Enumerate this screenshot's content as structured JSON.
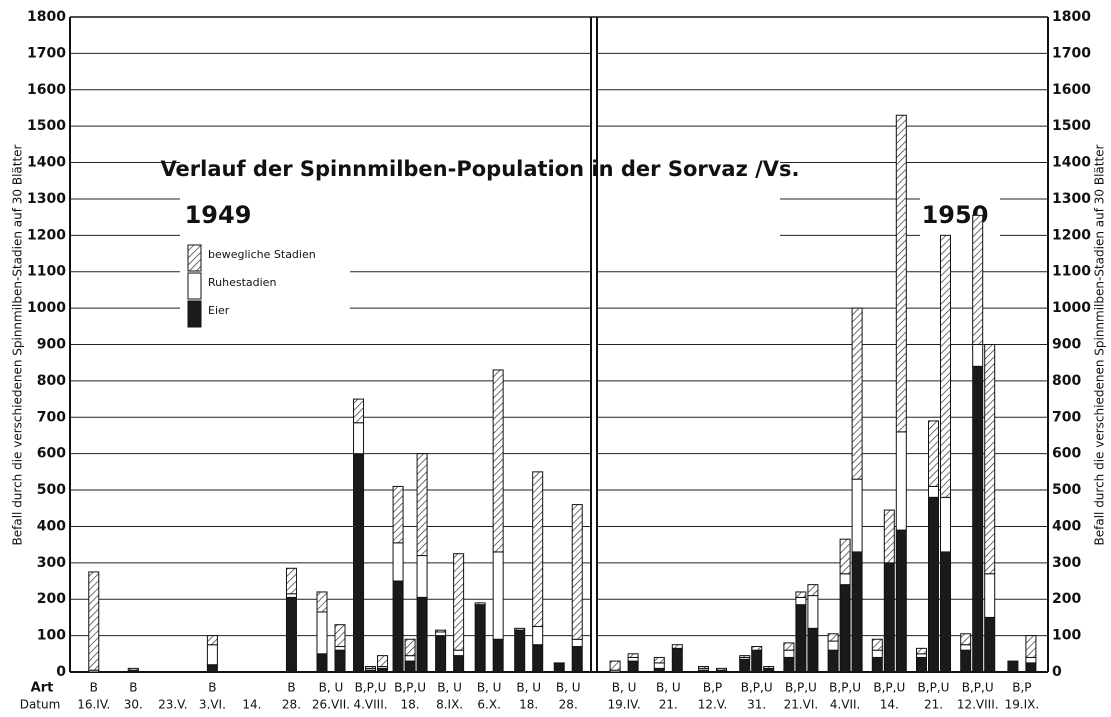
{
  "chart_data": {
    "type": "bar",
    "stacked": true,
    "title": "Verlauf der Spinnmilben-Population in der Sorvaz /Vs.",
    "y_label": "Befall durch die verschiedenen Spinnmilben-Stadien auf 30 Blätter",
    "row_labels": {
      "art": "Art",
      "date": "Datum"
    },
    "ylim": [
      0,
      1800
    ],
    "yticks": [
      0,
      100,
      200,
      300,
      400,
      500,
      600,
      700,
      800,
      900,
      1000,
      1100,
      1200,
      1300,
      1400,
      1500,
      1600,
      1700,
      1800
    ],
    "grid": true,
    "series": [
      {
        "name": "Eier",
        "color": "#1a1a1a",
        "hatch": false
      },
      {
        "name": "Ruhestadien",
        "color": "#ffffff",
        "hatch": false
      },
      {
        "name": "bewegliche Stadien",
        "color": "#333333",
        "hatch": true
      }
    ],
    "panels": [
      {
        "label": "1949",
        "art": [
          "B",
          "B",
          null,
          "B",
          null,
          "B",
          "B, U",
          null,
          "B,P,U",
          null,
          null,
          "B,P,U",
          null,
          null,
          "B, U",
          null,
          "B, U",
          null,
          "B, U",
          null,
          "B, U",
          null
        ],
        "dates": [
          "16.IV.",
          "30.",
          "23.V.",
          "3.VI.",
          "14.",
          "28.",
          "26.VII.",
          null,
          "4.VIII.",
          null,
          null,
          "18.",
          null,
          null,
          "8.IX.",
          null,
          "6.X.",
          null,
          "18.",
          null,
          "28.",
          null
        ],
        "values": [
          [
            0,
            5,
            null,
            20,
            null,
            205,
            50,
            60,
            600,
            5,
            10,
            250,
            30,
            205,
            100,
            45,
            185,
            90,
            115,
            75,
            25,
            70
          ],
          [
            5,
            0,
            null,
            55,
            null,
            10,
            115,
            10,
            85,
            5,
            5,
            105,
            15,
            115,
            10,
            15,
            0,
            240,
            0,
            50,
            0,
            20
          ],
          [
            270,
            5,
            null,
            25,
            null,
            70,
            55,
            60,
            65,
            5,
            30,
            155,
            45,
            280,
            5,
            265,
            5,
            500,
            5,
            425,
            0,
            370
          ]
        ]
      },
      {
        "label": "1950",
        "art": [
          "B, U",
          null,
          "B, U",
          null,
          "B,P",
          null,
          "B,P,U",
          null,
          null,
          "B,P,U",
          null,
          null,
          "B,P,U",
          null,
          null,
          "B,P,U",
          null,
          null,
          "B,P,U",
          null,
          null,
          "B,P,U",
          null,
          null,
          "B,P",
          null
        ],
        "dates": [
          "19.IV.",
          null,
          "21.",
          null,
          "12.V.",
          null,
          "31.",
          null,
          null,
          "21.VI.",
          null,
          null,
          "4.VII.",
          null,
          null,
          "14.",
          null,
          null,
          "21.",
          null,
          null,
          "12.VIII.",
          null,
          null,
          "19.IX.",
          null
        ],
        "values": [
          [
            0,
            30,
            10,
            65,
            5,
            5,
            35,
            60,
            10,
            40,
            185,
            120,
            60,
            240,
            330,
            40,
            300,
            390,
            40,
            480,
            330,
            60,
            840,
            150,
            30,
            25
          ],
          [
            5,
            10,
            15,
            0,
            5,
            0,
            5,
            0,
            0,
            20,
            20,
            90,
            25,
            30,
            200,
            20,
            0,
            270,
            10,
            30,
            150,
            15,
            60,
            120,
            0,
            15
          ],
          [
            25,
            10,
            15,
            10,
            5,
            5,
            5,
            10,
            5,
            20,
            15,
            30,
            20,
            95,
            470,
            30,
            145,
            870,
            15,
            180,
            720,
            30,
            355,
            630,
            0,
            60
          ]
        ]
      }
    ]
  }
}
